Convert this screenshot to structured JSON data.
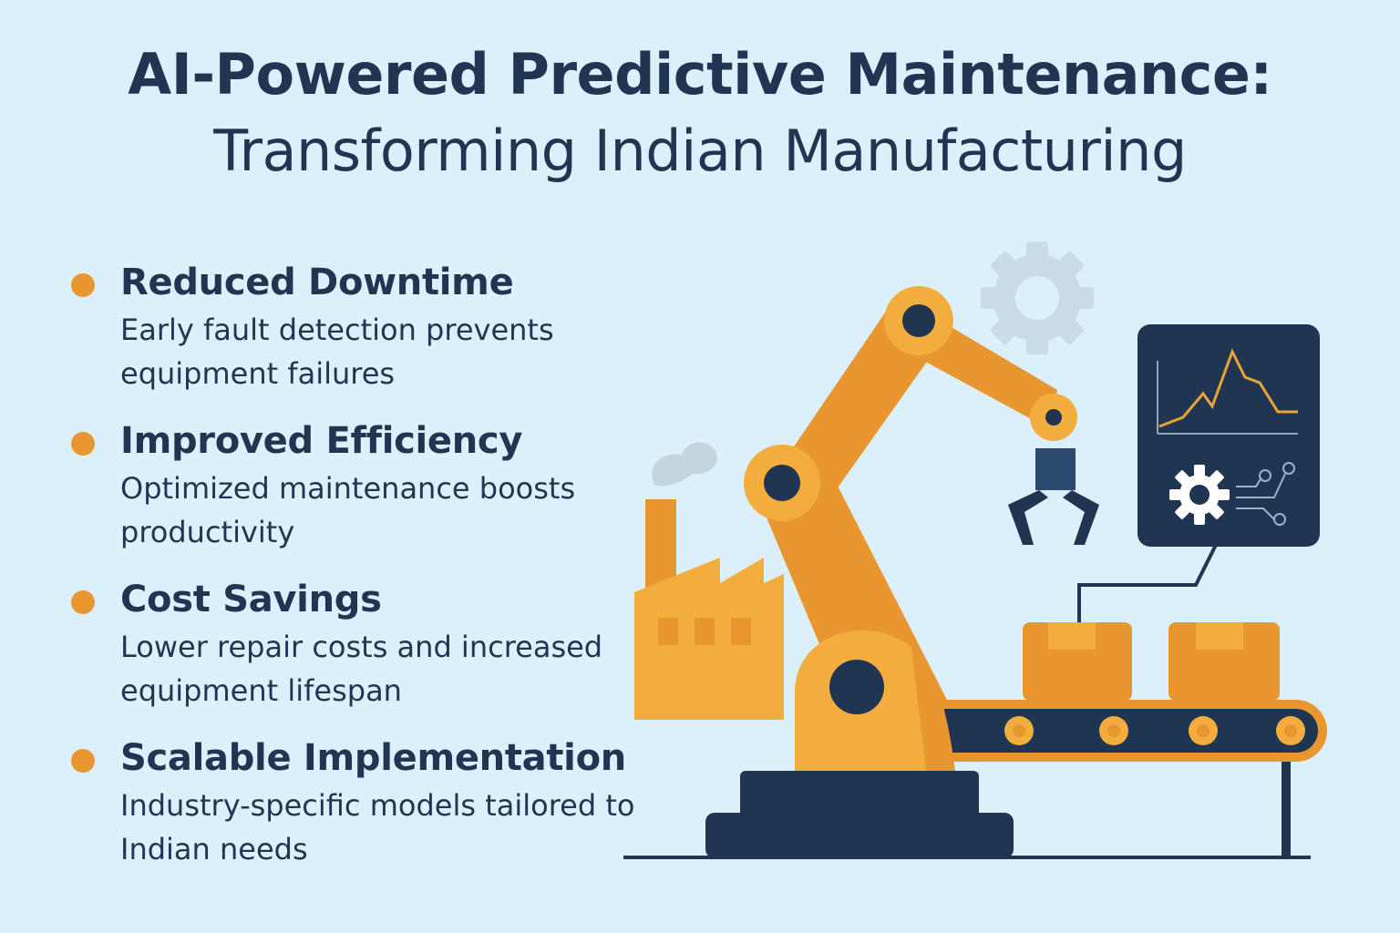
{
  "title": {
    "line1": "AI-Powered Predictive Maintenance:",
    "line2": "Transforming Indian Manufacturing"
  },
  "features": [
    {
      "title": "Reduced Downtime",
      "description": "Early fault detection prevents equipment failures"
    },
    {
      "title": "Improved Efficiency",
      "description": "Optimized maintenance boosts productivity"
    },
    {
      "title": "Cost Savings",
      "description": "Lower repair costs and increased equipment lifespan"
    },
    {
      "title": "Scalable Implementation",
      "description": "Industry-specific models tailored to Indian needs"
    }
  ],
  "illustration": {
    "icons": [
      "robotic-arm-icon",
      "factory-icon",
      "gear-icon",
      "monitor-icon",
      "conveyor-belt-icon",
      "box-icon",
      "circuit-icon",
      "chart-line-icon",
      "smoke-icon"
    ],
    "colors": {
      "background": "#dcf0fb",
      "text": "#1f3552",
      "accent_orange": "#e8962f",
      "accent_yellow": "#f2ad3d",
      "dark_navy": "#1f3552",
      "gear_gray": "#c9dbe4"
    }
  }
}
